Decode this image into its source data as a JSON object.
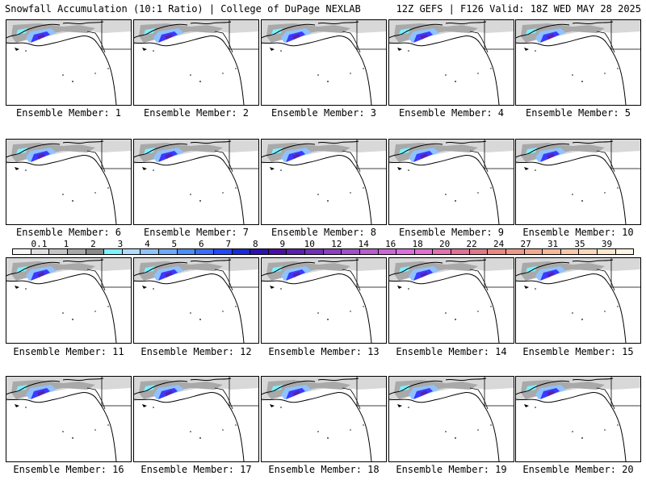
{
  "header": {
    "title_left": "Snowfall Accumulation (10:1 Ratio) | College of DuPage NEXLAB",
    "title_right": "12Z GEFS | F126 Valid: 18Z WED MAY 28 2025"
  },
  "panels": [
    {
      "label": "Ensemble Member: 1"
    },
    {
      "label": "Ensemble Member: 2"
    },
    {
      "label": "Ensemble Member: 3"
    },
    {
      "label": "Ensemble Member: 4"
    },
    {
      "label": "Ensemble Member: 5"
    },
    {
      "label": "Ensemble Member: 6"
    },
    {
      "label": "Ensemble Member: 7"
    },
    {
      "label": "Ensemble Member: 8"
    },
    {
      "label": "Ensemble Member: 9"
    },
    {
      "label": "Ensemble Member: 10"
    },
    {
      "label": "Ensemble Member: 11"
    },
    {
      "label": "Ensemble Member: 12"
    },
    {
      "label": "Ensemble Member: 13"
    },
    {
      "label": "Ensemble Member: 14"
    },
    {
      "label": "Ensemble Member: 15"
    },
    {
      "label": "Ensemble Member: 16"
    },
    {
      "label": "Ensemble Member: 17"
    },
    {
      "label": "Ensemble Member: 18"
    },
    {
      "label": "Ensemble Member: 19"
    },
    {
      "label": "Ensemble Member: 20"
    }
  ],
  "colorbar": {
    "tick_labels": [
      "0.1",
      "1",
      "2",
      "3",
      "4",
      "5",
      "6",
      "7",
      "8",
      "9",
      "10",
      "12",
      "14",
      "16",
      "18",
      "20",
      "22",
      "24",
      "27",
      "31",
      "35",
      "39"
    ],
    "colors": [
      "#f7f7f7",
      "#e0e0e0",
      "#c4c4c4",
      "#a8a8a8",
      "#8a8a8a",
      "#7ef0ff",
      "#b0dcff",
      "#8fc2ff",
      "#6ea8ff",
      "#4b8cff",
      "#3a6cff",
      "#2448ff",
      "#1a2ad8",
      "#2a12b0",
      "#4a0ea8",
      "#5a20b0",
      "#7030b8",
      "#8a40c0",
      "#a050c8",
      "#b85cd0",
      "#cc66d8",
      "#dd6ce0",
      "#e070d0",
      "#e070b0",
      "#e07098",
      "#e07888",
      "#e88880",
      "#f09888",
      "#f4a890",
      "#f8b898",
      "#fac8a8",
      "#fcd8b8",
      "#fde8cc",
      "#fef4e4"
    ]
  }
}
